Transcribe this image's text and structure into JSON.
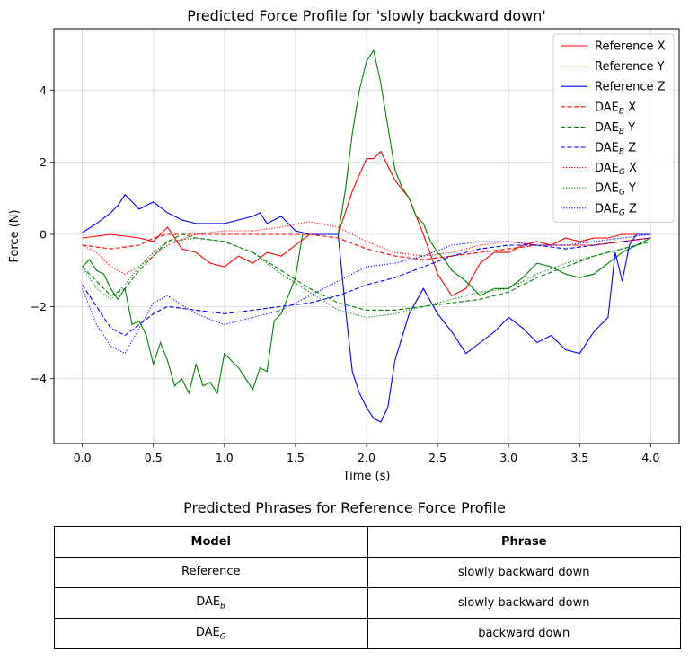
{
  "chart_data": {
    "type": "line",
    "title": "Predicted Force Profile for 'slowly backward down'",
    "xlabel": "Time (s)",
    "ylabel": "Force (N)",
    "xlim": [
      -0.2,
      4.2
    ],
    "ylim": [
      -5.8,
      5.7
    ],
    "xticks": [
      0.0,
      0.5,
      1.0,
      1.5,
      2.0,
      2.5,
      3.0,
      3.5,
      4.0
    ],
    "xtick_labels": [
      "0.0",
      "0.5",
      "1.0",
      "1.5",
      "2.0",
      "2.5",
      "3.0",
      "3.5",
      "4.0"
    ],
    "yticks": [
      -4,
      -2,
      0,
      2,
      4
    ],
    "ytick_labels": [
      "−4",
      "−2",
      "0",
      "2",
      "4"
    ],
    "grid": true,
    "legend_position": "top-right",
    "series": [
      {
        "name": "Reference X",
        "legend_base": "Reference X",
        "legend_sub": "",
        "legend_suffix": "",
        "color": "#ff0000",
        "style": "solid",
        "x": [
          0.0,
          0.1,
          0.2,
          0.3,
          0.4,
          0.5,
          0.6,
          0.7,
          0.8,
          0.9,
          1.0,
          1.1,
          1.2,
          1.3,
          1.4,
          1.5,
          1.6,
          1.7,
          1.8,
          1.9,
          2.0,
          2.05,
          2.1,
          2.2,
          2.3,
          2.4,
          2.5,
          2.6,
          2.7,
          2.8,
          2.9,
          3.0,
          3.1,
          3.2,
          3.3,
          3.4,
          3.5,
          3.6,
          3.7,
          3.8,
          3.9,
          4.0
        ],
        "y": [
          -0.1,
          -0.05,
          0.0,
          -0.05,
          -0.1,
          -0.2,
          0.2,
          -0.4,
          -0.5,
          -0.8,
          -0.9,
          -0.6,
          -0.8,
          -0.5,
          -0.6,
          -0.3,
          0.0,
          0.0,
          0.0,
          1.2,
          2.1,
          2.1,
          2.3,
          1.5,
          1.0,
          0.0,
          -1.1,
          -1.7,
          -1.5,
          -0.8,
          -0.5,
          -0.5,
          -0.3,
          -0.2,
          -0.3,
          -0.1,
          -0.2,
          -0.1,
          -0.1,
          0.0,
          0.0,
          0.0
        ]
      },
      {
        "name": "Reference Y",
        "legend_base": "Reference Y",
        "legend_sub": "",
        "legend_suffix": "",
        "color": "#008000",
        "style": "solid",
        "x": [
          0.0,
          0.05,
          0.1,
          0.15,
          0.2,
          0.25,
          0.3,
          0.35,
          0.4,
          0.45,
          0.5,
          0.55,
          0.6,
          0.65,
          0.7,
          0.75,
          0.8,
          0.85,
          0.9,
          0.95,
          1.0,
          1.05,
          1.1,
          1.15,
          1.2,
          1.25,
          1.3,
          1.35,
          1.4,
          1.45,
          1.5,
          1.55,
          1.6,
          1.65,
          1.7,
          1.75,
          1.8,
          1.85,
          1.9,
          1.95,
          2.0,
          2.05,
          2.1,
          2.15,
          2.2,
          2.25,
          2.3,
          2.35,
          2.4,
          2.45,
          2.5,
          2.55,
          2.6,
          2.7,
          2.8,
          2.9,
          3.0,
          3.1,
          3.2,
          3.3,
          3.4,
          3.5,
          3.6,
          3.7,
          3.8,
          3.9,
          4.0
        ],
        "y": [
          -0.9,
          -0.7,
          -1.0,
          -1.1,
          -1.5,
          -1.8,
          -1.5,
          -2.5,
          -2.4,
          -2.8,
          -3.6,
          -3.0,
          -3.5,
          -4.2,
          -4.0,
          -4.4,
          -3.6,
          -4.2,
          -4.1,
          -4.4,
          -3.3,
          -3.5,
          -3.7,
          -4.0,
          -4.3,
          -3.7,
          -3.8,
          -2.4,
          -2.2,
          -1.7,
          -1.2,
          0.0,
          0.0,
          0.0,
          0.0,
          0.0,
          0.0,
          1.2,
          2.8,
          4.0,
          4.8,
          5.1,
          4.2,
          3.0,
          1.8,
          1.3,
          1.0,
          0.5,
          0.3,
          -0.2,
          -0.5,
          -0.7,
          -1.0,
          -1.3,
          -1.7,
          -1.5,
          -1.5,
          -1.2,
          -0.8,
          -0.9,
          -1.1,
          -1.2,
          -1.1,
          -0.8,
          -0.5,
          -0.3,
          -0.1
        ]
      },
      {
        "name": "Reference Z",
        "legend_base": "Reference Z",
        "legend_sub": "",
        "legend_suffix": "",
        "color": "#0000ff",
        "style": "solid",
        "x": [
          0.0,
          0.1,
          0.2,
          0.25,
          0.3,
          0.35,
          0.4,
          0.5,
          0.6,
          0.7,
          0.8,
          0.9,
          1.0,
          1.1,
          1.2,
          1.25,
          1.3,
          1.4,
          1.5,
          1.6,
          1.7,
          1.8,
          1.85,
          1.9,
          1.95,
          2.0,
          2.05,
          2.1,
          2.15,
          2.2,
          2.3,
          2.4,
          2.5,
          2.6,
          2.7,
          2.8,
          2.9,
          3.0,
          3.1,
          3.2,
          3.3,
          3.4,
          3.5,
          3.6,
          3.7,
          3.75,
          3.8,
          3.85,
          3.9,
          4.0
        ],
        "y": [
          0.05,
          0.3,
          0.6,
          0.8,
          1.1,
          0.9,
          0.7,
          0.9,
          0.6,
          0.4,
          0.3,
          0.3,
          0.3,
          0.4,
          0.5,
          0.6,
          0.3,
          0.5,
          0.1,
          0.0,
          0.0,
          0.0,
          -2.0,
          -3.8,
          -4.4,
          -4.8,
          -5.1,
          -5.2,
          -4.8,
          -3.5,
          -2.2,
          -1.5,
          -2.2,
          -2.7,
          -3.3,
          -3.0,
          -2.7,
          -2.3,
          -2.6,
          -3.0,
          -2.8,
          -3.2,
          -3.3,
          -2.7,
          -2.3,
          -0.5,
          -1.3,
          -0.3,
          0.0,
          0.0
        ]
      },
      {
        "name": "DAE_B X",
        "legend_base": "DAE",
        "legend_sub": "B",
        "legend_suffix": " X",
        "color": "#ff0000",
        "style": "dashed",
        "x": [
          0.0,
          0.2,
          0.4,
          0.5,
          0.6,
          0.8,
          1.0,
          1.2,
          1.4,
          1.6,
          1.8,
          2.0,
          2.2,
          2.4,
          2.6,
          2.8,
          3.0,
          3.2,
          3.4,
          3.6,
          3.8,
          4.0
        ],
        "y": [
          -0.3,
          -0.4,
          -0.3,
          -0.1,
          0.0,
          0.0,
          0.0,
          0.0,
          0.0,
          0.0,
          -0.1,
          -0.4,
          -0.6,
          -0.7,
          -0.6,
          -0.5,
          -0.4,
          -0.3,
          -0.3,
          -0.3,
          -0.2,
          -0.1
        ]
      },
      {
        "name": "DAE_B Y",
        "legend_base": "DAE",
        "legend_sub": "B",
        "legend_suffix": " Y",
        "color": "#008000",
        "style": "dashed",
        "x": [
          0.0,
          0.1,
          0.2,
          0.3,
          0.4,
          0.5,
          0.6,
          0.7,
          0.8,
          1.0,
          1.2,
          1.4,
          1.6,
          1.8,
          2.0,
          2.2,
          2.4,
          2.6,
          2.8,
          3.0,
          3.2,
          3.4,
          3.6,
          3.8,
          4.0
        ],
        "y": [
          -0.9,
          -1.3,
          -1.7,
          -1.5,
          -1.0,
          -0.6,
          -0.2,
          0.0,
          -0.1,
          -0.2,
          -0.5,
          -1.0,
          -1.5,
          -1.9,
          -2.1,
          -2.1,
          -2.0,
          -1.9,
          -1.8,
          -1.6,
          -1.2,
          -0.9,
          -0.6,
          -0.4,
          -0.2
        ]
      },
      {
        "name": "DAE_B Z",
        "legend_base": "DAE",
        "legend_sub": "B",
        "legend_suffix": " Z",
        "color": "#0000ff",
        "style": "dashed",
        "x": [
          0.0,
          0.1,
          0.2,
          0.3,
          0.4,
          0.5,
          0.6,
          0.8,
          1.0,
          1.2,
          1.4,
          1.6,
          1.8,
          2.0,
          2.2,
          2.4,
          2.6,
          2.8,
          3.0,
          3.2,
          3.4,
          3.6,
          3.8,
          4.0
        ],
        "y": [
          -1.4,
          -2.0,
          -2.6,
          -2.8,
          -2.5,
          -2.2,
          -2.0,
          -2.1,
          -2.2,
          -2.1,
          -2.0,
          -1.9,
          -1.7,
          -1.4,
          -1.2,
          -0.9,
          -0.6,
          -0.4,
          -0.3,
          -0.3,
          -0.4,
          -0.3,
          -0.2,
          -0.1
        ]
      },
      {
        "name": "DAE_G X",
        "legend_base": "DAE",
        "legend_sub": "G",
        "legend_suffix": " X",
        "color": "#ff0000",
        "style": "dotted",
        "x": [
          0.0,
          0.1,
          0.2,
          0.3,
          0.4,
          0.5,
          0.6,
          0.8,
          1.0,
          1.2,
          1.4,
          1.6,
          1.8,
          2.0,
          2.2,
          2.4,
          2.6,
          2.8,
          3.0,
          3.2,
          3.4,
          3.6,
          3.8,
          4.0
        ],
        "y": [
          -0.3,
          -0.5,
          -0.9,
          -1.1,
          -0.9,
          -0.6,
          -0.3,
          0.0,
          0.1,
          0.1,
          0.2,
          0.35,
          0.2,
          -0.2,
          -0.5,
          -0.6,
          -0.5,
          -0.3,
          -0.2,
          -0.3,
          -0.3,
          -0.3,
          -0.2,
          -0.1
        ]
      },
      {
        "name": "DAE_G Y",
        "legend_base": "DAE",
        "legend_sub": "G",
        "legend_suffix": " Y",
        "color": "#008000",
        "style": "dotted",
        "x": [
          0.0,
          0.1,
          0.2,
          0.3,
          0.4,
          0.5,
          0.6,
          0.8,
          1.0,
          1.2,
          1.4,
          1.6,
          1.8,
          2.0,
          2.2,
          2.4,
          2.6,
          2.8,
          3.0,
          3.2,
          3.4,
          3.6,
          3.8,
          4.0
        ],
        "y": [
          -0.9,
          -1.5,
          -1.8,
          -1.4,
          -0.9,
          -0.5,
          -0.2,
          -0.1,
          -0.2,
          -0.5,
          -1.1,
          -1.6,
          -2.1,
          -2.3,
          -2.2,
          -2.0,
          -1.8,
          -1.6,
          -1.5,
          -1.1,
          -0.8,
          -0.6,
          -0.4,
          -0.2
        ]
      },
      {
        "name": "DAE_G Z",
        "legend_base": "DAE",
        "legend_sub": "G",
        "legend_suffix": " Z",
        "color": "#0000ff",
        "style": "dotted",
        "x": [
          0.0,
          0.1,
          0.2,
          0.3,
          0.4,
          0.5,
          0.6,
          0.8,
          1.0,
          1.2,
          1.4,
          1.6,
          1.8,
          2.0,
          2.2,
          2.4,
          2.6,
          2.8,
          3.0,
          3.2,
          3.4,
          3.6,
          3.8,
          4.0
        ],
        "y": [
          -1.5,
          -2.5,
          -3.1,
          -3.3,
          -2.6,
          -1.9,
          -1.7,
          -2.2,
          -2.5,
          -2.3,
          -2.1,
          -1.7,
          -1.3,
          -0.9,
          -0.8,
          -0.6,
          -0.3,
          -0.2,
          -0.2,
          -0.3,
          -0.3,
          -0.2,
          -0.1,
          0.0
        ]
      }
    ]
  },
  "table": {
    "title": "Predicted Phrases for Reference Force Profile",
    "headers": [
      "Model",
      "Phrase"
    ],
    "rows": [
      {
        "model_base": "Reference",
        "model_sub": "",
        "phrase": "slowly backward down"
      },
      {
        "model_base": "DAE",
        "model_sub": "B",
        "phrase": "slowly backward down"
      },
      {
        "model_base": "DAE",
        "model_sub": "G",
        "phrase": "backward down"
      }
    ]
  }
}
